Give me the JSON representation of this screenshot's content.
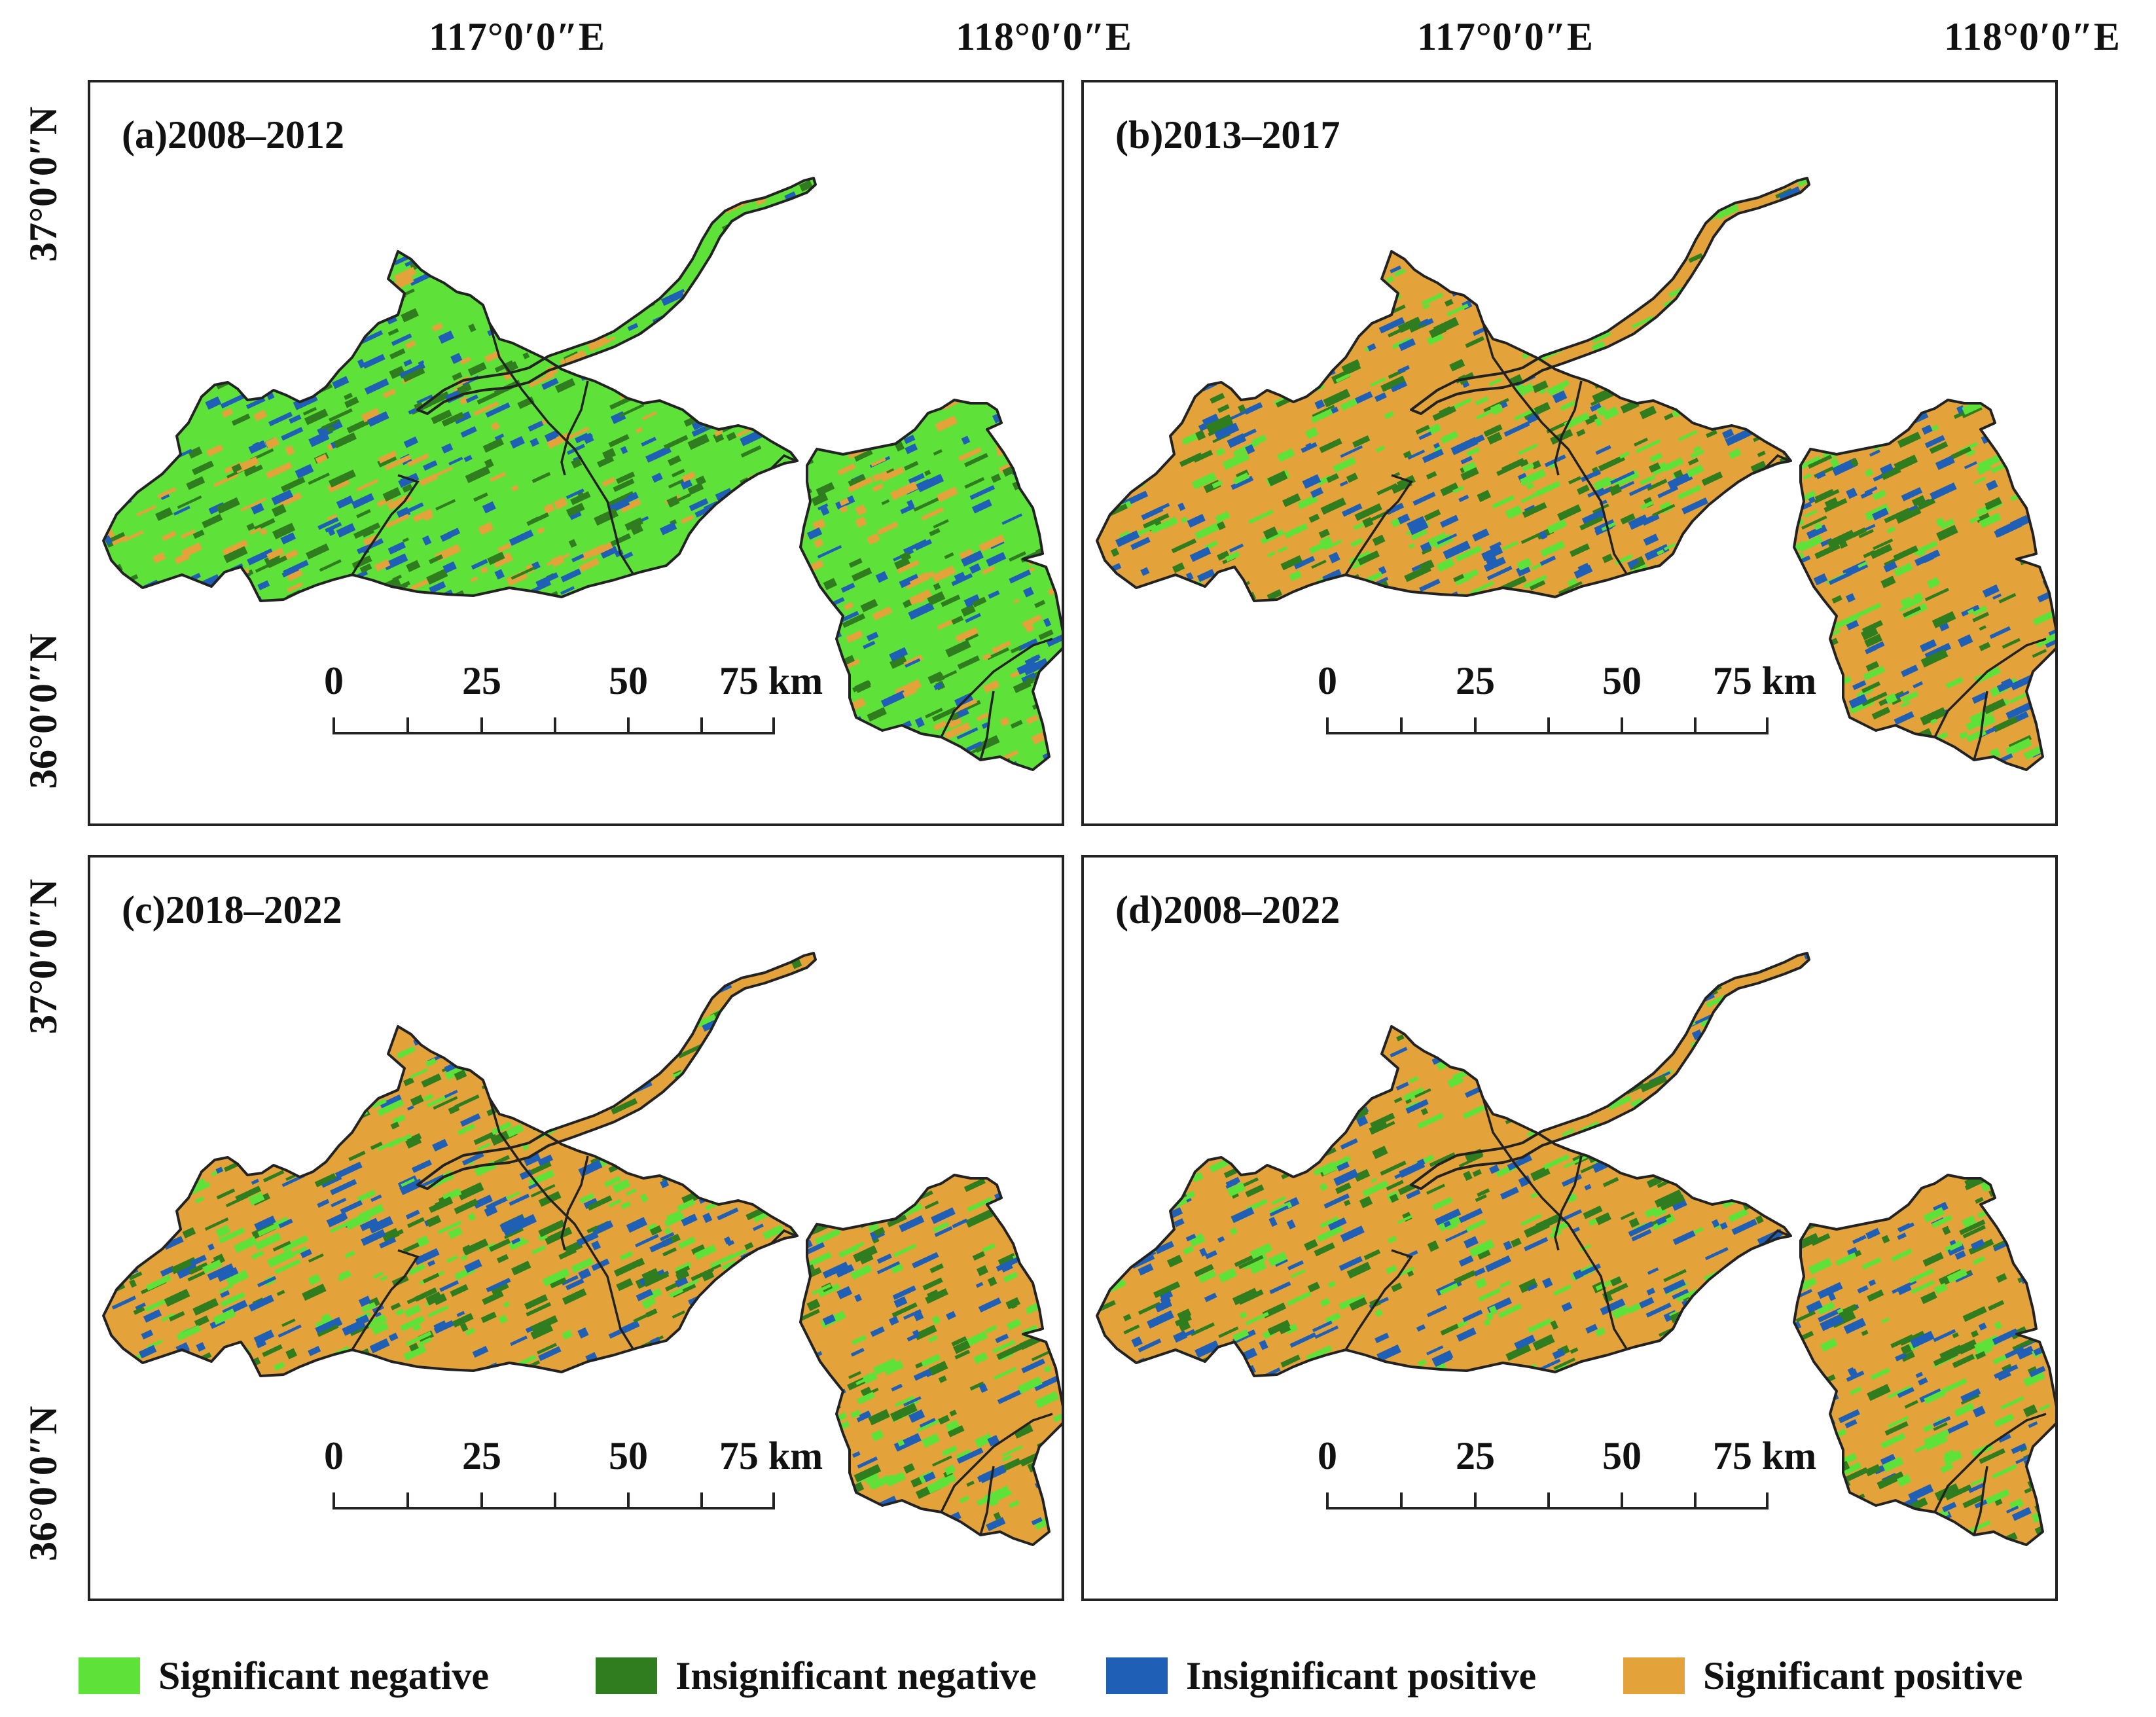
{
  "axes": {
    "lon_labels": [
      "117°0′0″E",
      "118°0′0″E",
      "117°0′0″E",
      "118°0′0″E"
    ],
    "lat_labels": [
      "37°0′0″N",
      "36°0′0″N",
      "37°0′0″N",
      "36°0′0″N"
    ]
  },
  "panels": [
    {
      "title": "(a)2008–2012",
      "dominant_class": "Significant negative"
    },
    {
      "title": "(b)2013–2017",
      "dominant_class": "Significant positive"
    },
    {
      "title": "(c)2018–2022",
      "dominant_class": "Significant positive"
    },
    {
      "title": "(d)2008–2022",
      "dominant_class": "Significant positive"
    }
  ],
  "scalebar": {
    "labels": [
      "0",
      "25",
      "50",
      "75 km"
    ]
  },
  "legend": [
    {
      "label": "Significant negative",
      "color": "#5ee23a"
    },
    {
      "label": "Insignificant negative",
      "color": "#2f7d1e"
    },
    {
      "label": "Insignificant positive",
      "color": "#1f5fb5"
    },
    {
      "label": "Significant positive",
      "color": "#e3a33a"
    }
  ],
  "colors": {
    "boundary": "#222222",
    "frame": "#222222"
  }
}
